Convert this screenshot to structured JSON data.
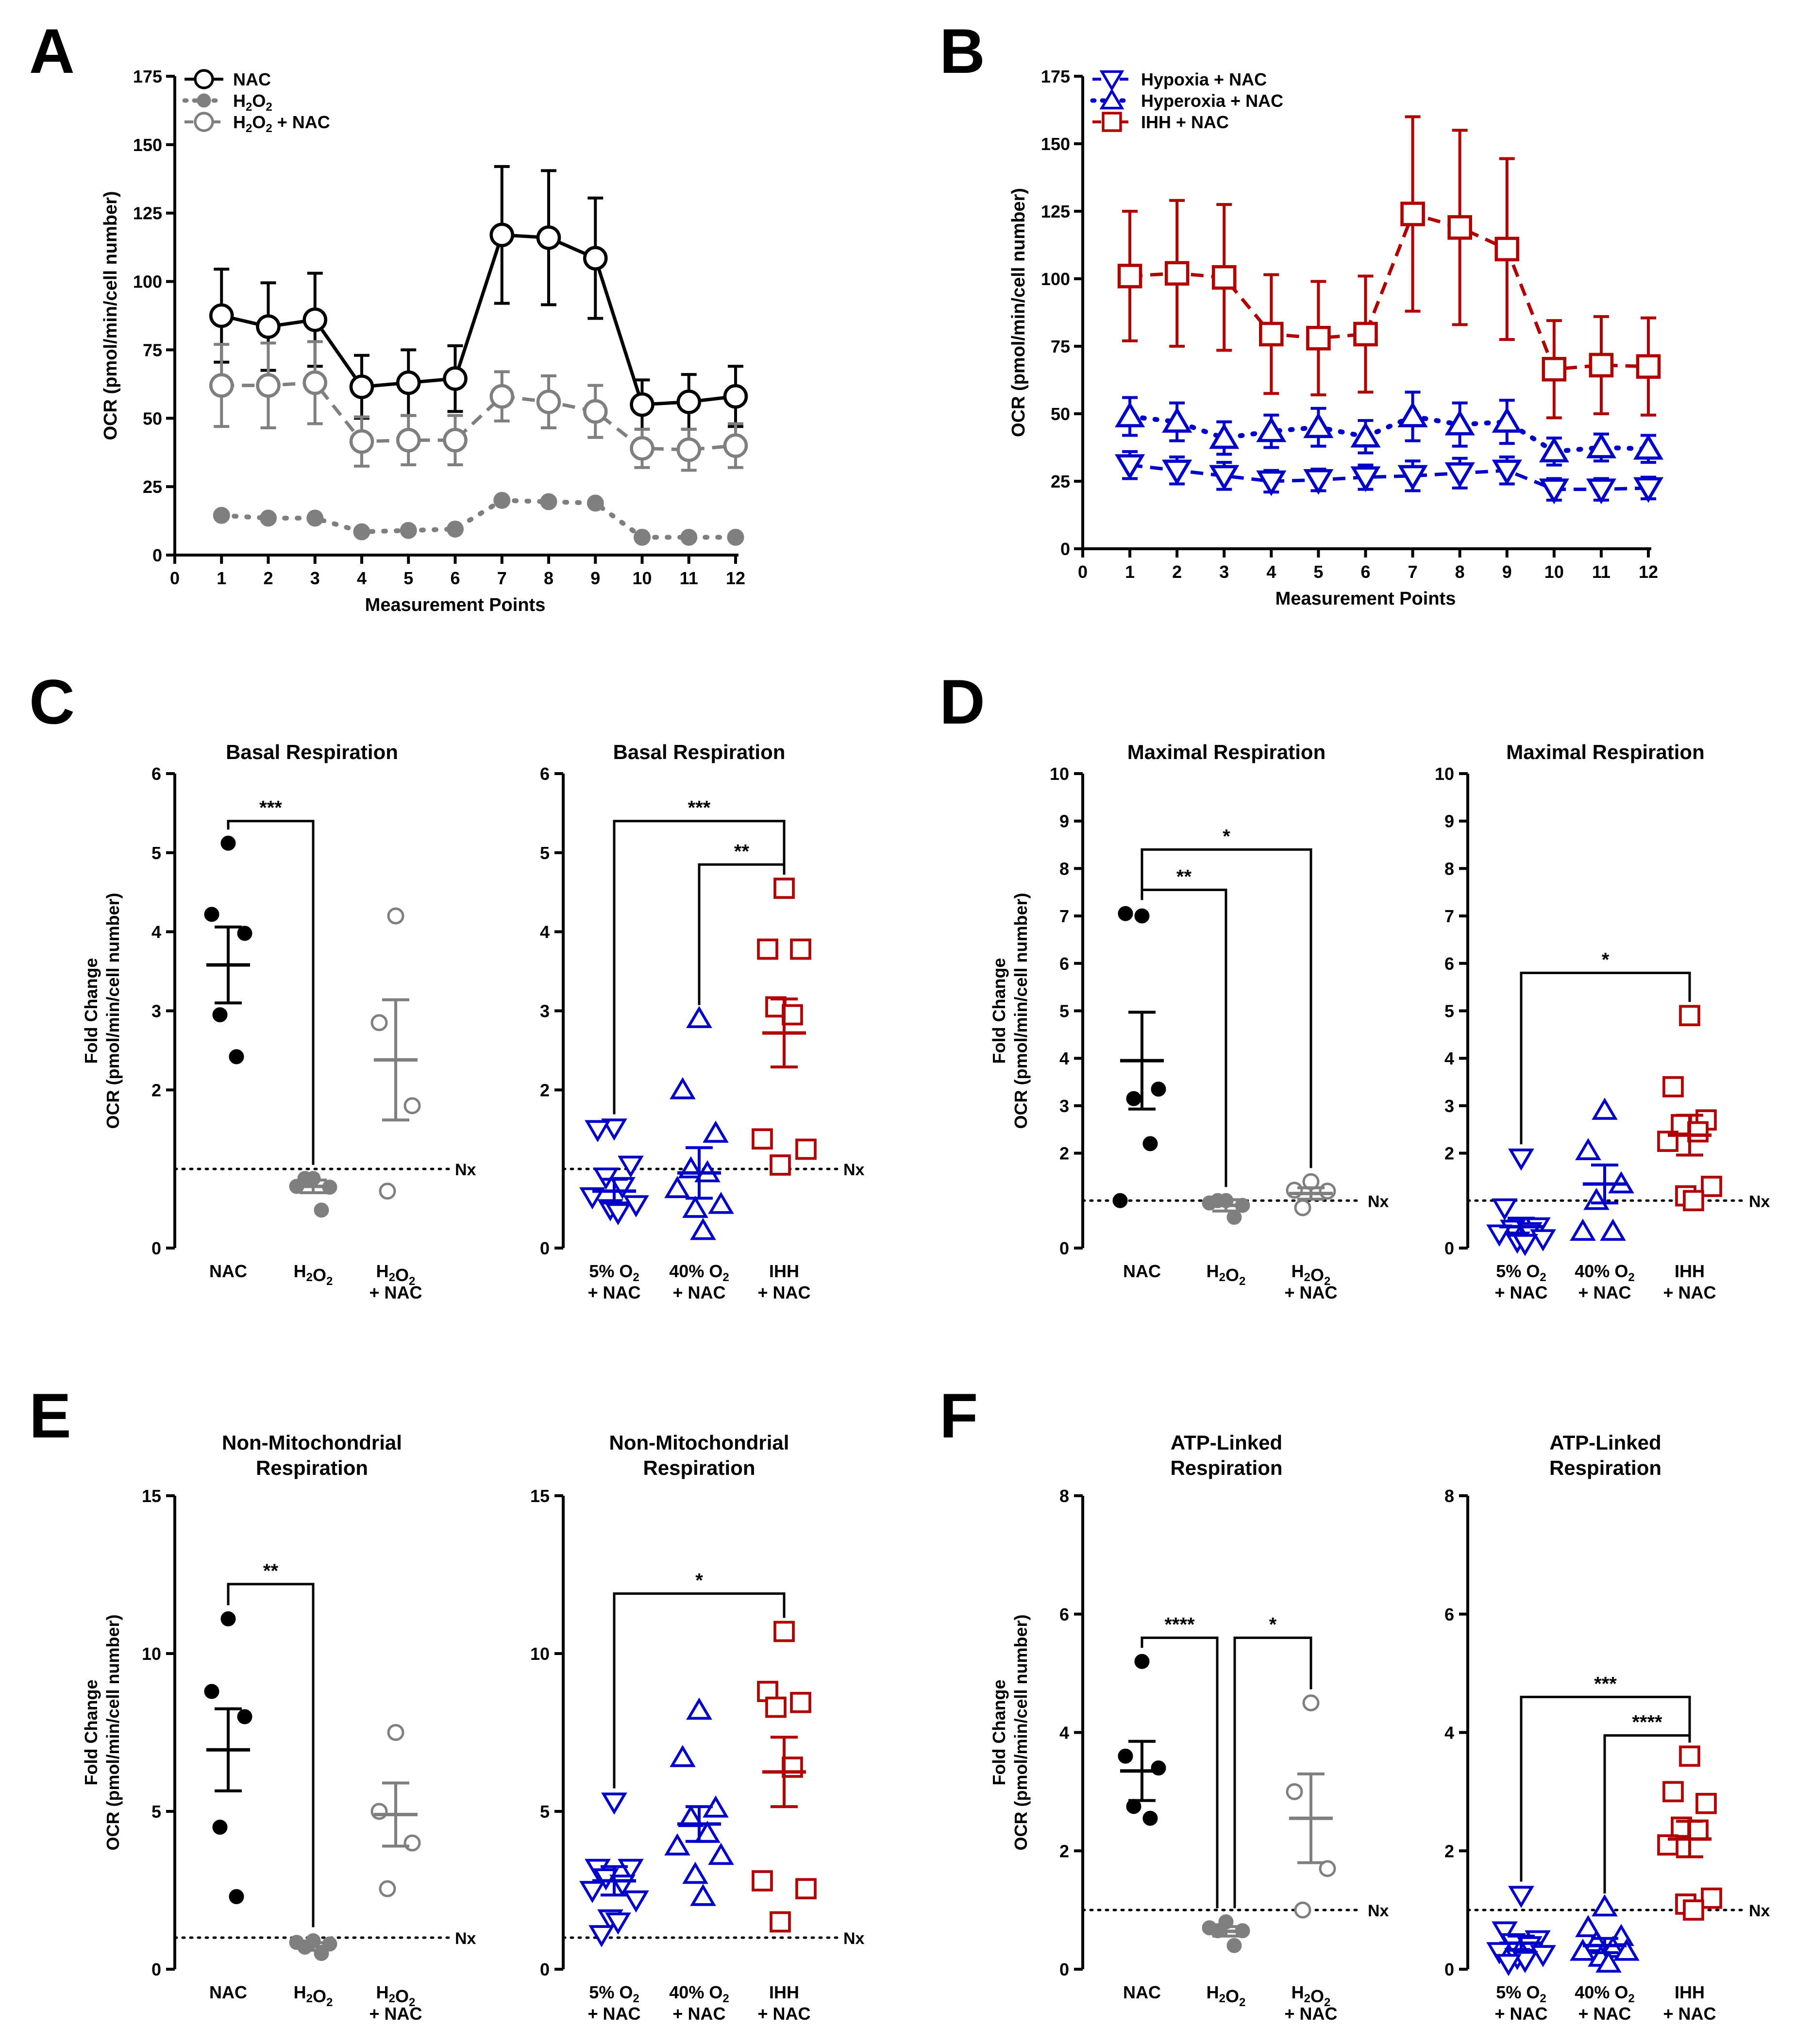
{
  "figure": {
    "colors": {
      "black": "#000000",
      "gray": "#7f7f7f",
      "blue": "#0000c8",
      "red": "#b00000"
    },
    "common": {
      "measurement_label": "Measurement Points",
      "ocr_label": "OCR (pmol/min/cell number)",
      "fold_label": "Fold Change",
      "nx_label": "Nx"
    }
  },
  "chart_data": [
    {
      "panel": "A",
      "type": "line",
      "title": "",
      "xlabel": "Measurement Points",
      "ylabel": "OCR (pmol/min/cell number)",
      "x": [
        1,
        2,
        3,
        4,
        5,
        6,
        7,
        8,
        9,
        10,
        11,
        12
      ],
      "xlim": [
        0,
        12
      ],
      "ylim": [
        0,
        175
      ],
      "yticks": [
        0,
        25,
        50,
        75,
        100,
        125,
        150,
        175
      ],
      "legend": "top-left",
      "series": [
        {
          "name": "NAC",
          "legend_label": "NAC",
          "color": "black",
          "marker": "circle-open",
          "dash": "solid",
          "values": [
            87.5,
            83.5,
            86,
            61.5,
            63,
            64.5,
            117,
            116,
            108.5,
            55,
            56,
            58
          ],
          "err": [
            17,
            16,
            17,
            11.5,
            12,
            12,
            25,
            24.5,
            22,
            9,
            10,
            11
          ]
        },
        {
          "name": "H2O2",
          "legend_label": "H",
          "legend_sub": "2",
          "legend_label2": "O",
          "legend_sub2": "2",
          "legend_tail": "",
          "color": "gray",
          "marker": "circle-filled",
          "dash": "dot",
          "values": [
            14.5,
            13.5,
            13.5,
            8.5,
            9,
            9.5,
            20,
            19.5,
            19,
            6.5,
            6.5,
            6.5
          ],
          "err": [
            0,
            0,
            0,
            0,
            0,
            0,
            0,
            0,
            0,
            0,
            0,
            0
          ]
        },
        {
          "name": "H2O2 + NAC",
          "legend_label": "H",
          "legend_sub": "2",
          "legend_label2": "O",
          "legend_sub2": "2",
          "legend_tail": " + NAC",
          "color": "gray",
          "marker": "circle-open",
          "dash": "dash",
          "values": [
            62,
            62,
            63,
            41.5,
            42,
            42,
            58,
            56,
            52.5,
            39,
            38.5,
            40
          ],
          "err": [
            15,
            15.5,
            15,
            9,
            9,
            9,
            9,
            9.5,
            9.5,
            7,
            7.5,
            8
          ]
        }
      ]
    },
    {
      "panel": "B",
      "type": "line",
      "title": "",
      "xlabel": "Measurement Points",
      "ylabel": "OCR (pmol/min/cell number)",
      "x": [
        1,
        2,
        3,
        4,
        5,
        6,
        7,
        8,
        9,
        10,
        11,
        12
      ],
      "xlim": [
        0,
        12
      ],
      "ylim": [
        0,
        175
      ],
      "yticks": [
        0,
        25,
        50,
        75,
        100,
        125,
        150,
        175
      ],
      "legend": "top-left",
      "series": [
        {
          "name": "Hypoxia + NAC",
          "legend_label": "Hypoxia + NAC",
          "color": "blue",
          "marker": "triangle-down-open",
          "dash": "dash",
          "values": [
            31,
            29,
            27,
            25,
            25.5,
            26.5,
            27,
            28,
            29,
            22,
            22,
            22.5
          ],
          "err": [
            5,
            5,
            5,
            4,
            4,
            4.5,
            5.5,
            5.5,
            5,
            4,
            4,
            4
          ]
        },
        {
          "name": "Hyperoxia + NAC",
          "legend_label": "Hyperoxia + NAC",
          "color": "blue",
          "marker": "triangle-up-open",
          "dash": "dot",
          "values": [
            49,
            47,
            41,
            43.5,
            45,
            41.5,
            49,
            46,
            47,
            36,
            37.5,
            37
          ],
          "err": [
            7,
            7,
            6,
            6,
            7,
            6,
            9,
            8,
            8,
            5,
            5,
            5
          ]
        },
        {
          "name": "IHH + NAC",
          "legend_label": "IHH + NAC",
          "color": "red",
          "marker": "square-open",
          "dash": "dash",
          "values": [
            101,
            102,
            100.5,
            79.5,
            78,
            79.5,
            124,
            119,
            111,
            66.5,
            68,
            67.5
          ],
          "err": [
            24,
            27,
            27,
            22,
            21,
            21.5,
            36,
            36,
            33.5,
            18,
            18,
            18
          ]
        }
      ]
    },
    {
      "panel": "C",
      "type": "scatter",
      "title": "Basal Respiration",
      "ylabel": "OCR (pmol/min/cell number)",
      "ylabel2": "Fold Change",
      "ylim": [
        0,
        6
      ],
      "yticks": [
        0,
        2,
        3,
        4,
        5,
        6
      ],
      "nx": 1,
      "nx_label": "Nx",
      "left": {
        "groups": [
          {
            "label": [
              "NAC"
            ],
            "color": "black",
            "marker": "circle-filled",
            "points": [
              5.12,
              4.22,
              3.98,
              2.95,
              2.42
            ],
            "mean": 3.58,
            "sem": 0.48
          },
          {
            "label": [
              "H2O2"
            ],
            "color": "gray",
            "marker": "circle-filled",
            "points": [
              0.88,
              0.78,
              0.77,
              0.88,
              0.48
            ],
            "mean": 0.78,
            "sem": 0.08
          },
          {
            "label": [
              "H2O2",
              "+ NAC"
            ],
            "color": "gray",
            "marker": "circle-open",
            "points": [
              4.2,
              2.85,
              1.8,
              0.72
            ],
            "mean": 2.38,
            "sem": 0.76
          }
        ],
        "brackets": [
          {
            "from": 0,
            "to": 1,
            "y": 5.4,
            "label": "***"
          }
        ]
      },
      "right": {
        "groups": [
          {
            "label": [
              "5% O2",
              "+ NAC"
            ],
            "color": "blue",
            "marker": "triangle-down",
            "points": [
              1.52,
              1.5,
              1.05,
              0.9,
              0.78,
              0.65,
              0.55,
              0.5,
              0.45
            ],
            "mean": 0.72,
            "sem": 0.15
          },
          {
            "label": [
              "40% O2",
              "+ NAC"
            ],
            "color": "blue",
            "marker": "triangle-up",
            "points": [
              2.9,
              2.0,
              1.45,
              1.0,
              0.95,
              0.75,
              0.55,
              0.5,
              0.22
            ],
            "mean": 0.95,
            "sem": 0.32
          },
          {
            "label": [
              "IHH",
              "+ NAC"
            ],
            "color": "red",
            "marker": "square",
            "points": [
              4.55,
              3.78,
              3.78,
              3.05,
              2.95,
              1.38,
              1.25,
              1.05
            ],
            "mean": 2.72,
            "sem": 0.43
          }
        ],
        "brackets": [
          {
            "from": 0,
            "to": 2,
            "y": 5.4,
            "label": "***"
          },
          {
            "from": 1,
            "to": 2,
            "y": 4.85,
            "label": "**"
          }
        ]
      }
    },
    {
      "panel": "D",
      "type": "scatter",
      "title": "Maximal Respiration",
      "ylabel": "OCR (pmol/min/cell number)",
      "ylabel2": "Fold Change",
      "ylim": [
        0,
        10
      ],
      "yticks": [
        0,
        2,
        3,
        4,
        5,
        6,
        7,
        8,
        9,
        10
      ],
      "nx": 1,
      "nx_label": "Nx",
      "left": {
        "groups": [
          {
            "label": [
              "NAC"
            ],
            "color": "black",
            "marker": "circle-filled",
            "points": [
              7.0,
              7.05,
              3.35,
              3.15,
              2.2,
              1.0
            ],
            "mean": 3.95,
            "sem": 1.02
          },
          {
            "label": [
              "H2O2"
            ],
            "color": "gray",
            "marker": "circle-filled",
            "points": [
              1.0,
              0.95,
              0.9,
              1.0,
              0.65
            ],
            "mean": 0.9,
            "sem": 0.12
          },
          {
            "label": [
              "H2O2",
              "+ NAC"
            ],
            "color": "gray",
            "marker": "circle-open",
            "points": [
              1.4,
              1.22,
              1.2,
              0.85
            ],
            "mean": 1.15,
            "sem": 0.12
          }
        ],
        "brackets": [
          {
            "from": 0,
            "to": 2,
            "y": 8.4,
            "label": "*"
          },
          {
            "from": 0,
            "to": 1,
            "y": 7.55,
            "label": "**"
          }
        ]
      },
      "right": {
        "groups": [
          {
            "label": [
              "5% O2",
              "+ NAC"
            ],
            "color": "blue",
            "marker": "triangle-down",
            "points": [
              1.9,
              0.85,
              0.45,
              0.4,
              0.35,
              0.3,
              0.2,
              0.15,
              0.1
            ],
            "mean": 0.45,
            "sem": 0.18
          },
          {
            "label": [
              "40% O2",
              "+ NAC"
            ],
            "color": "blue",
            "marker": "triangle-up",
            "points": [
              2.9,
              2.05,
              1.35,
              1.0,
              0.35,
              0.35
            ],
            "mean": 1.35,
            "sem": 0.4
          },
          {
            "label": [
              "IHH",
              "+ NAC"
            ],
            "color": "red",
            "marker": "square",
            "points": [
              4.9,
              3.4,
              2.7,
              2.6,
              2.45,
              2.25,
              1.3,
              1.1,
              1.0
            ],
            "mean": 2.38,
            "sem": 0.42
          }
        ],
        "brackets": [
          {
            "from": 0,
            "to": 2,
            "y": 5.8,
            "label": "*"
          }
        ]
      }
    },
    {
      "panel": "E",
      "type": "scatter",
      "title": "Non-Mitochondrial",
      "title2": "Respiration",
      "ylabel": "OCR (pmol/min/cell number)",
      "ylabel2": "Fold Change",
      "ylim": [
        0,
        15
      ],
      "yticks": [
        0,
        5,
        10,
        15
      ],
      "nx": 1,
      "nx_label": "Nx",
      "left": {
        "groups": [
          {
            "label": [
              "NAC"
            ],
            "color": "black",
            "marker": "circle-filled",
            "points": [
              11.1,
              8.8,
              8.0,
              4.5,
              2.3
            ],
            "mean": 6.95,
            "sem": 1.3
          },
          {
            "label": [
              "H2O2"
            ],
            "color": "gray",
            "marker": "circle-filled",
            "points": [
              0.9,
              0.85,
              0.8,
              0.7,
              0.5
            ],
            "mean": 0.72,
            "sem": 0.12
          },
          {
            "label": [
              "H2O2",
              "+ NAC"
            ],
            "color": "gray",
            "marker": "circle-open",
            "points": [
              7.5,
              5.0,
              4.0,
              2.55
            ],
            "mean": 4.9,
            "sem": 1.0
          }
        ],
        "brackets": [
          {
            "from": 0,
            "to": 1,
            "y": 12.2,
            "label": "**"
          }
        ]
      },
      "right": {
        "groups": [
          {
            "label": [
              "5% O2",
              "+ NAC"
            ],
            "color": "blue",
            "marker": "triangle-down",
            "points": [
              5.3,
              3.2,
              3.2,
              2.9,
              2.7,
              2.5,
              2.2,
              1.6,
              1.5,
              1.1
            ],
            "mean": 2.8,
            "sem": 0.45
          },
          {
            "label": [
              "40% O2",
              "+ NAC"
            ],
            "color": "blue",
            "marker": "triangle-up",
            "points": [
              8.2,
              6.7,
              5.1,
              4.8,
              4.3,
              3.9,
              3.6,
              3.0,
              2.3
            ],
            "mean": 4.6,
            "sem": 0.55
          },
          {
            "label": [
              "IHH",
              "+ NAC"
            ],
            "color": "red",
            "marker": "square",
            "points": [
              10.7,
              8.8,
              8.45,
              8.3,
              6.4,
              2.8,
              2.55,
              1.5
            ],
            "mean": 6.25,
            "sem": 1.1
          }
        ],
        "brackets": [
          {
            "from": 0,
            "to": 2,
            "y": 11.9,
            "label": "*"
          }
        ]
      }
    },
    {
      "panel": "F",
      "type": "scatter",
      "title": "ATP-Linked",
      "title2": "Respiration",
      "ylabel": "OCR (pmol/min/cell number)",
      "ylabel2": "Fold Change",
      "ylim": [
        0,
        8
      ],
      "yticks": [
        0,
        2,
        4,
        6,
        8
      ],
      "nx": 1,
      "nx_label": "Nx",
      "left": {
        "groups": [
          {
            "label": [
              "NAC"
            ],
            "color": "black",
            "marker": "circle-filled",
            "points": [
              5.2,
              3.6,
              3.4,
              2.75,
              2.55
            ],
            "mean": 3.35,
            "sem": 0.5
          },
          {
            "label": [
              "H2O2"
            ],
            "color": "gray",
            "marker": "circle-filled",
            "points": [
              0.8,
              0.7,
              0.65,
              0.65,
              0.4
            ],
            "mean": 0.64,
            "sem": 0.08
          },
          {
            "label": [
              "H2O2",
              "+ NAC"
            ],
            "color": "gray",
            "marker": "circle-open",
            "points": [
              4.5,
              3.0,
              1.7,
              1.0
            ],
            "mean": 2.55,
            "sem": 0.75
          }
        ],
        "brackets": [
          {
            "from": 0,
            "to": 1,
            "y": 5.6,
            "label": "****",
            "dx2": -18
          },
          {
            "from": 1,
            "to": 2,
            "y": 5.6,
            "label": "*",
            "dx1": 18
          }
        ]
      },
      "right": {
        "groups": [
          {
            "label": [
              "5% O2",
              "+ NAC"
            ],
            "color": "blue",
            "marker": "triangle-down",
            "points": [
              1.25,
              0.65,
              0.5,
              0.45,
              0.4,
              0.3,
              0.25,
              0.2,
              0.15,
              0.1
            ],
            "mean": 0.44,
            "sem": 0.12
          },
          {
            "label": [
              "40% O2",
              "+ NAC"
            ],
            "color": "blue",
            "marker": "triangle-up",
            "points": [
              1.05,
              0.7,
              0.55,
              0.45,
              0.35,
              0.3,
              0.3,
              0.2,
              0.1
            ],
            "mean": 0.4,
            "sem": 0.12
          },
          {
            "label": [
              "IHH",
              "+ NAC"
            ],
            "color": "red",
            "marker": "square",
            "points": [
              3.6,
              3.0,
              2.8,
              2.4,
              2.35,
              2.1,
              1.2,
              1.1,
              1.0
            ],
            "mean": 2.2,
            "sem": 0.3
          }
        ],
        "brackets": [
          {
            "from": 0,
            "to": 2,
            "y": 4.6,
            "label": "***"
          },
          {
            "from": 1,
            "to": 2,
            "y": 3.95,
            "label": "****"
          }
        ]
      }
    }
  ]
}
